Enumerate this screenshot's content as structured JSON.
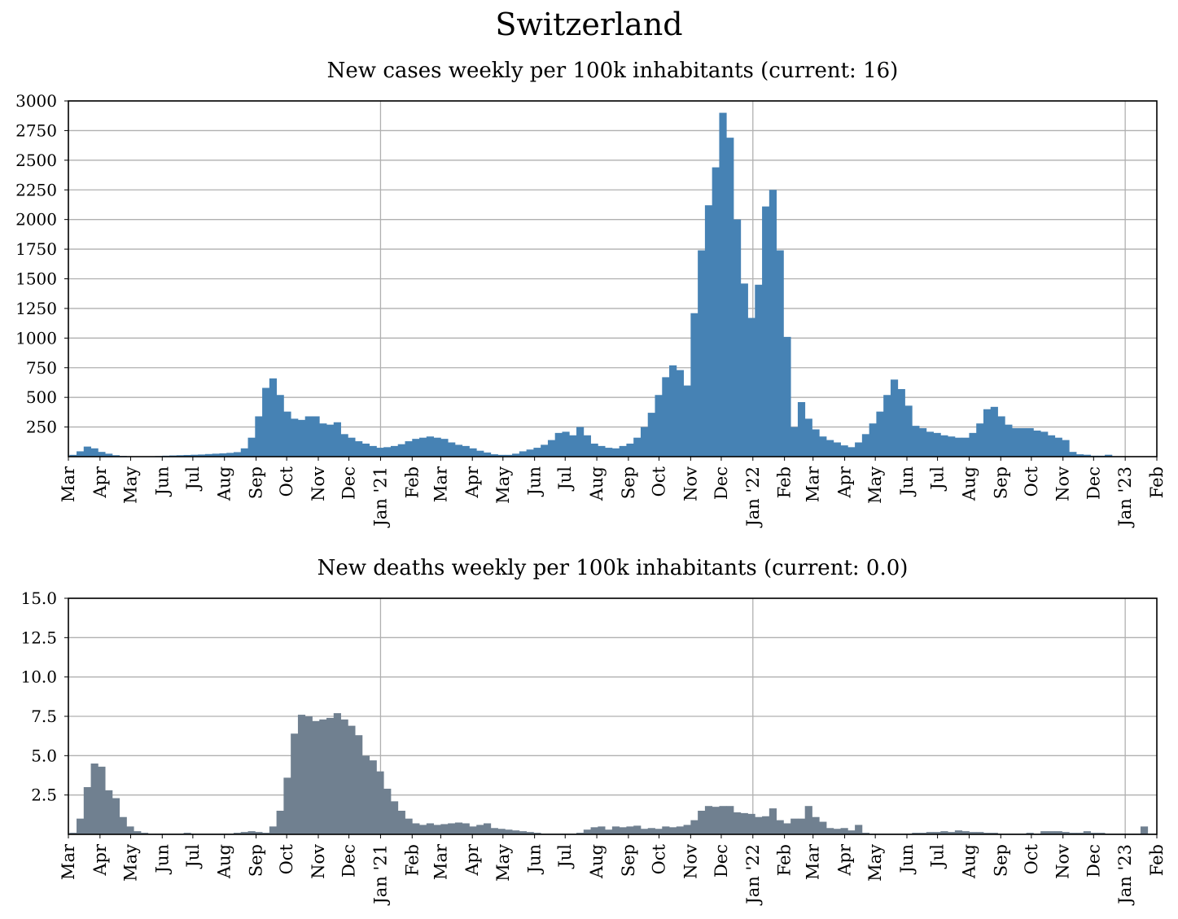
{
  "figure_title": "Switzerland",
  "colors": {
    "cases_bar": "#4682b4",
    "deaths_bar": "#708090",
    "grid": "#b0b0b0",
    "axes": "#000000"
  },
  "chart_data": [
    {
      "type": "bar",
      "title": "New cases weekly per 100k inhabitants (current: 16)",
      "xlabel": "",
      "ylabel": "",
      "x_start": "2020-03-01",
      "x_end": "2023-02-01",
      "week_start": "2020-03-02",
      "ylim": [
        0,
        3000
      ],
      "yticks": [
        250,
        500,
        750,
        1000,
        1250,
        1500,
        1750,
        2000,
        2250,
        2500,
        2750,
        3000
      ],
      "ytick_labels": [
        "250",
        "500",
        "750",
        "1000",
        "1250",
        "1500",
        "1750",
        "2000",
        "2250",
        "2500",
        "2750",
        "3000"
      ],
      "grid": true,
      "bar_color": "#4682b4",
      "values": [
        15,
        45,
        85,
        70,
        40,
        25,
        12,
        6,
        3,
        2,
        2,
        3,
        5,
        8,
        10,
        12,
        14,
        16,
        18,
        22,
        25,
        28,
        32,
        38,
        70,
        160,
        340,
        580,
        660,
        520,
        380,
        320,
        310,
        340,
        340,
        280,
        270,
        290,
        190,
        160,
        130,
        110,
        90,
        75,
        80,
        90,
        105,
        130,
        150,
        160,
        170,
        160,
        150,
        120,
        100,
        90,
        70,
        50,
        35,
        20,
        15,
        15,
        25,
        45,
        60,
        75,
        100,
        140,
        200,
        210,
        180,
        250,
        180,
        110,
        90,
        75,
        70,
        90,
        110,
        160,
        250,
        370,
        520,
        670,
        770,
        730,
        600,
        1210,
        1740,
        2120,
        2440,
        2900,
        2690,
        2000,
        1460,
        1170,
        1450,
        2110,
        2250,
        1740,
        1010,
        250,
        460,
        320,
        230,
        170,
        140,
        120,
        95,
        80,
        120,
        190,
        280,
        380,
        520,
        650,
        570,
        430,
        260,
        240,
        210,
        200,
        180,
        170,
        160,
        160,
        200,
        280,
        400,
        420,
        340,
        270,
        240,
        240,
        240,
        220,
        210,
        180,
        160,
        140,
        40,
        20,
        16,
        8,
        8,
        16
      ]
    },
    {
      "type": "bar",
      "title": "New deaths weekly per 100k inhabitants (current: 0.0)",
      "xlabel": "",
      "ylabel": "",
      "x_start": "2020-03-01",
      "x_end": "2023-02-01",
      "week_start": "2020-03-02",
      "ylim": [
        0,
        15
      ],
      "yticks": [
        2.5,
        5.0,
        7.5,
        10.0,
        12.5,
        15.0
      ],
      "ytick_labels": [
        "2.5",
        "5.0",
        "7.5",
        "10.0",
        "12.5",
        "15.0"
      ],
      "grid": true,
      "bar_color": "#708090",
      "values": [
        0.1,
        1.0,
        3.0,
        4.5,
        4.3,
        2.8,
        2.3,
        1.1,
        0.5,
        0.2,
        0.1,
        0.05,
        0.05,
        0.05,
        0.05,
        0.05,
        0.1,
        0.05,
        0.05,
        0.05,
        0.05,
        0.05,
        0.05,
        0.1,
        0.15,
        0.2,
        0.15,
        0.1,
        0.5,
        1.5,
        3.6,
        6.4,
        7.6,
        7.5,
        7.2,
        7.3,
        7.4,
        7.7,
        7.3,
        6.9,
        6.3,
        5.0,
        4.7,
        4.0,
        2.9,
        2.1,
        1.5,
        1.0,
        0.7,
        0.6,
        0.7,
        0.6,
        0.65,
        0.7,
        0.75,
        0.7,
        0.5,
        0.6,
        0.7,
        0.4,
        0.35,
        0.3,
        0.25,
        0.2,
        0.15,
        0.1,
        0.05,
        0.05,
        0.05,
        0.05,
        0.05,
        0.1,
        0.3,
        0.45,
        0.5,
        0.3,
        0.5,
        0.45,
        0.5,
        0.55,
        0.35,
        0.4,
        0.35,
        0.5,
        0.45,
        0.5,
        0.6,
        0.9,
        1.5,
        1.8,
        1.75,
        1.8,
        1.8,
        1.4,
        1.35,
        1.3,
        1.1,
        1.15,
        1.65,
        0.9,
        0.7,
        1.0,
        1.0,
        1.8,
        1.1,
        0.8,
        0.4,
        0.35,
        0.4,
        0.25,
        0.6,
        0.1,
        0.05,
        0.05,
        0.05,
        0.05,
        0.05,
        0.05,
        0.1,
        0.1,
        0.15,
        0.15,
        0.2,
        0.15,
        0.25,
        0.2,
        0.15,
        0.15,
        0.1,
        0.1,
        0.05,
        0.05,
        0.05,
        0.05,
        0.1,
        0.05,
        0.2,
        0.2,
        0.2,
        0.15,
        0.1,
        0.1,
        0.2,
        0.1,
        0.1,
        0.05,
        0.05,
        0.05,
        0.05,
        0.05,
        0.5,
        0.05,
        0.05,
        0.0
      ]
    }
  ],
  "x_tick_labels": [
    "Mar",
    "Apr",
    "May",
    "Jun",
    "Jul",
    "Aug",
    "Sep",
    "Oct",
    "Nov",
    "Dec",
    "Jan '21",
    "Feb",
    "Mar",
    "Apr",
    "May",
    "Jun",
    "Jul",
    "Aug",
    "Sep",
    "Oct",
    "Nov",
    "Dec",
    "Jan '22",
    "Feb",
    "Mar",
    "Apr",
    "May",
    "Jun",
    "Jul",
    "Aug",
    "Sep",
    "Oct",
    "Nov",
    "Dec",
    "Jan '23",
    "Feb"
  ],
  "x_tick_dates": [
    "2020-03-01",
    "2020-04-01",
    "2020-05-01",
    "2020-06-01",
    "2020-07-01",
    "2020-08-01",
    "2020-09-01",
    "2020-10-01",
    "2020-11-01",
    "2020-12-01",
    "2021-01-01",
    "2021-02-01",
    "2021-03-01",
    "2021-04-01",
    "2021-05-01",
    "2021-06-01",
    "2021-07-01",
    "2021-08-01",
    "2021-09-01",
    "2021-10-01",
    "2021-11-01",
    "2021-12-01",
    "2022-01-01",
    "2022-02-01",
    "2022-03-01",
    "2022-04-01",
    "2022-05-01",
    "2022-06-01",
    "2022-07-01",
    "2022-08-01",
    "2022-09-01",
    "2022-10-01",
    "2022-11-01",
    "2022-12-01",
    "2023-01-01",
    "2023-02-01"
  ],
  "x_grid_dates": [
    "2021-01-01",
    "2022-01-01",
    "2023-01-01"
  ]
}
